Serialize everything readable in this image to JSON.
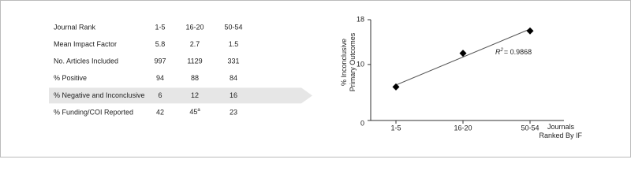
{
  "table": {
    "rows": [
      [
        "Journal Rank",
        "1-5",
        "16-20",
        "50-54"
      ],
      [
        "Mean Impact Factor",
        "5.8",
        "2.7",
        "1.5"
      ],
      [
        "No. Articles Included",
        "997",
        "1129",
        "331"
      ],
      [
        "% Positive",
        "94",
        "88",
        "84"
      ],
      [
        "% Negative and Inconclusive",
        "6",
        "12",
        "16"
      ],
      [
        "% Funding/COI Reported",
        "42",
        {
          "text": "45",
          "sup": "a"
        },
        "23"
      ]
    ],
    "highlight_row": 4
  },
  "chart_data": {
    "type": "scatter",
    "y_label": [
      "% Inconclusive",
      "Primary Outcomes"
    ],
    "x_label": [
      "Journals",
      "Ranked By IF"
    ],
    "categories": [
      "1-5",
      "16-20",
      "50-54"
    ],
    "values": [
      6,
      12,
      16
    ],
    "color": "#000000",
    "ylim": [
      0,
      18
    ],
    "yticks": [
      0,
      10,
      18
    ],
    "trendline": true,
    "annotation": {
      "base": "R",
      "sup": "2",
      "text": "= 0.9868"
    }
  }
}
